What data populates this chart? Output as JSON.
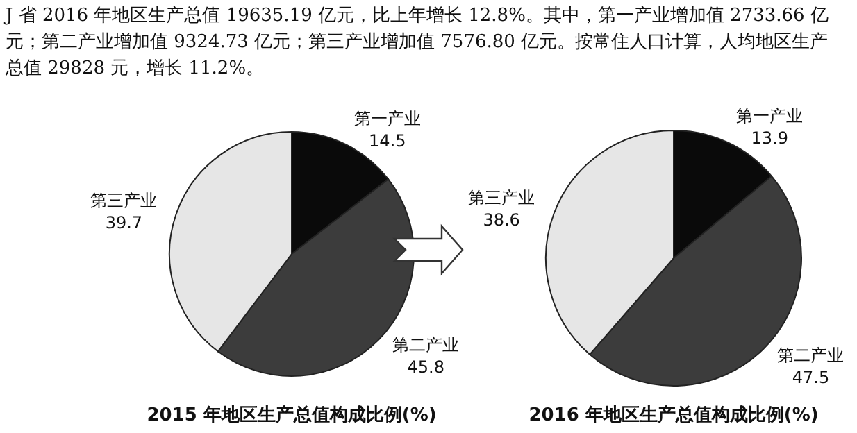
{
  "chart_data": [
    {
      "type": "other",
      "annotations": [
        "J 省 2016 年地区生产总值 19635.19 亿元，比上年增长 12.8%。其中，第一产业增加值 2733.66 亿元；第二产业增加值 9324.73 亿元；第三产业增加值 7576.80 亿元。按常住人口计算，人均地区生产总值 29828 元，增长 11.2%。"
      ]
    },
    {
      "type": "pie",
      "title": "2015 年地区生产总值构成比例(%)",
      "categories": [
        "第一产业",
        "第二产业",
        "第三产业"
      ],
      "values": [
        14.5,
        45.8,
        39.7
      ],
      "colors": [
        "#0a0a0a",
        "#3c3c3c",
        "#e6e6e6"
      ],
      "data_labels": true
    },
    {
      "type": "pie",
      "title": "2016 年地区生产总值构成比例(%)",
      "categories": [
        "第一产业",
        "第二产业",
        "第三产业"
      ],
      "values": [
        13.9,
        47.5,
        38.6
      ],
      "colors": [
        "#0a0a0a",
        "#3c3c3c",
        "#e6e6e6"
      ],
      "data_labels": true
    }
  ]
}
